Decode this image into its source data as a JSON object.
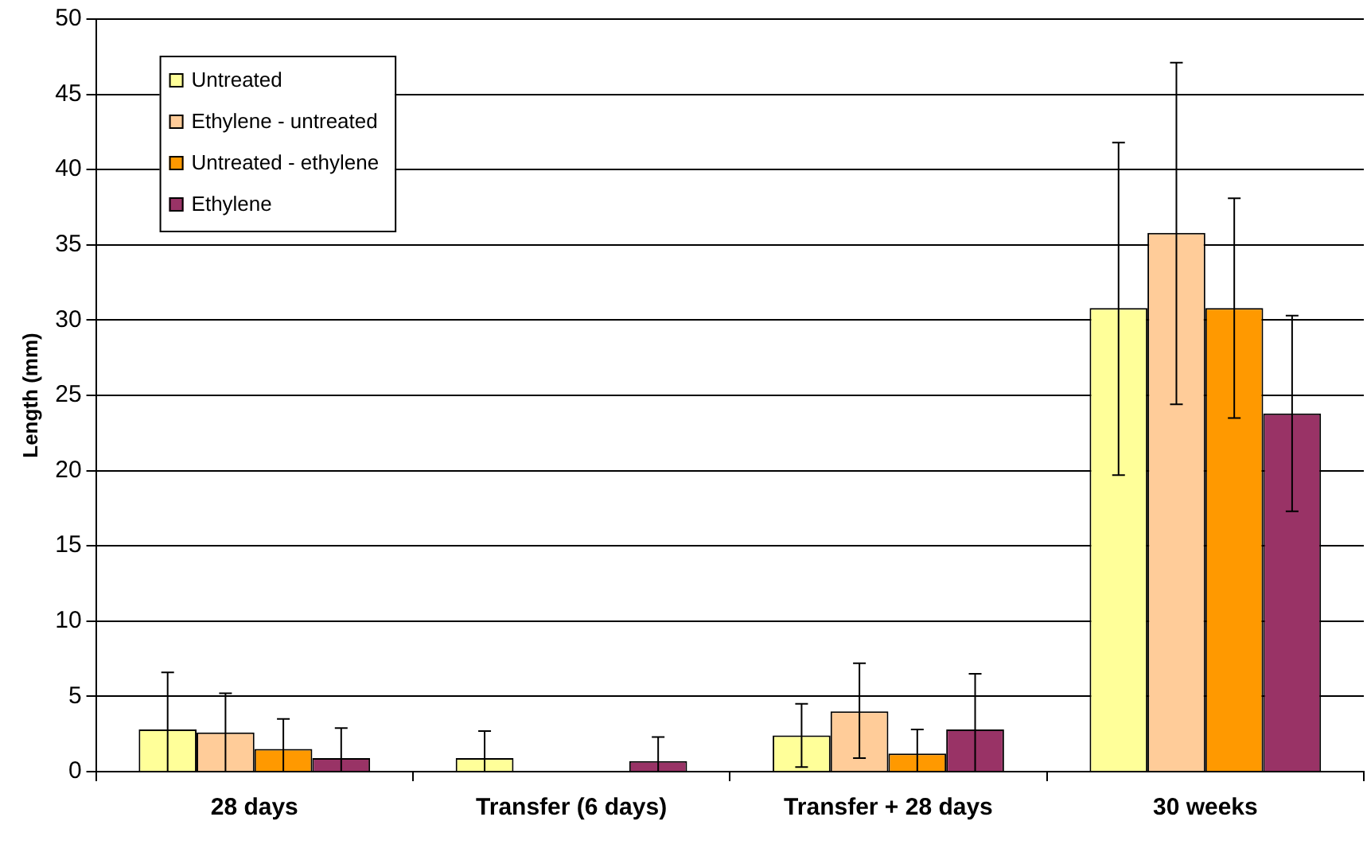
{
  "chart_data": {
    "type": "bar",
    "ylabel": "Length (mm)",
    "categories": [
      "28 days",
      "Transfer (6 days)",
      "Transfer + 28 days",
      "30 weeks"
    ],
    "series": [
      {
        "name": "Untreated",
        "color": "#ffff99",
        "values": [
          2.8,
          0.9,
          2.4,
          30.8
        ],
        "errors": [
          [
            0,
            6.6
          ],
          [
            0,
            2.7
          ],
          [
            0.3,
            4.5
          ],
          [
            19.7,
            41.8
          ]
        ]
      },
      {
        "name": "Ethylene - untreated",
        "color": "#ffcc99",
        "values": [
          2.6,
          0,
          4.0,
          35.8
        ],
        "errors": [
          [
            0,
            5.2
          ],
          null,
          [
            0.9,
            7.2
          ],
          [
            24.4,
            47.1
          ]
        ]
      },
      {
        "name": "Untreated - ethylene",
        "color": "#ff9900",
        "values": [
          1.5,
          0,
          1.2,
          30.8
        ],
        "errors": [
          [
            0,
            3.5
          ],
          null,
          [
            0,
            2.8
          ],
          [
            23.5,
            38.1
          ]
        ]
      },
      {
        "name": "Ethylene",
        "color": "#993366",
        "values": [
          0.9,
          0.7,
          2.8,
          23.8
        ],
        "errors": [
          [
            0,
            2.9
          ],
          [
            0,
            2.3
          ],
          [
            0,
            6.5
          ],
          [
            17.3,
            30.3
          ]
        ]
      }
    ],
    "ylim": [
      0,
      50
    ],
    "yticks": [
      0,
      5,
      10,
      15,
      20,
      25,
      30,
      35,
      40,
      45,
      50
    ],
    "grid": "y",
    "legend": "top left"
  }
}
